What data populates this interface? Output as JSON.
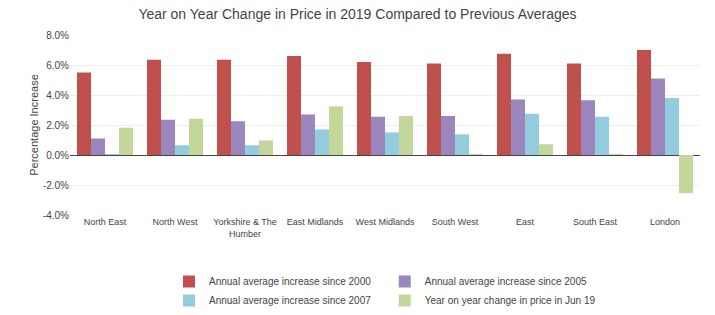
{
  "chart_data": {
    "type": "bar",
    "title": "Year on Year Change in Price in 2019 Compared to Previous Averages",
    "ylabel": "Percentage Increase",
    "categories": [
      "North East",
      "North West",
      "Yorkshire & The\nHumber",
      "East Midlands",
      "West Midlands",
      "South West",
      "East",
      "South East",
      "London"
    ],
    "series": [
      {
        "name": "Annual average increase since 2000",
        "color": "#C0504D",
        "values": [
          5.5,
          6.35,
          6.35,
          6.6,
          6.2,
          6.1,
          6.75,
          6.1,
          7.0
        ]
      },
      {
        "name": "Annual average increase since 2005",
        "color": "#9B86BD",
        "values": [
          1.1,
          2.35,
          2.25,
          2.7,
          2.55,
          2.6,
          3.7,
          3.65,
          5.1
        ]
      },
      {
        "name": "Annual average increase since 2007",
        "color": "#93CDDD",
        "values": [
          0.02,
          0.65,
          0.65,
          1.7,
          1.5,
          1.38,
          2.75,
          2.55,
          3.8
        ]
      },
      {
        "name": "Year on year change in price in Jun 19",
        "color": "#C4D79B",
        "values": [
          1.82,
          2.42,
          0.97,
          3.25,
          2.6,
          0.05,
          0.72,
          0.05,
          -2.55
        ]
      }
    ],
    "ylim": [
      -4.0,
      8.0
    ],
    "yticks": [
      {
        "value": -4.0,
        "label": "-4.0%"
      },
      {
        "value": -2.0,
        "label": "-2.0%"
      },
      {
        "value": 0.0,
        "label": "0.0%"
      },
      {
        "value": 2.0,
        "label": "2.0%"
      },
      {
        "value": 4.0,
        "label": "4.0%"
      },
      {
        "value": 6.0,
        "label": "6.0%"
      },
      {
        "value": 8.0,
        "label": "8.0%"
      }
    ],
    "grid": true,
    "legend": "bottom"
  }
}
